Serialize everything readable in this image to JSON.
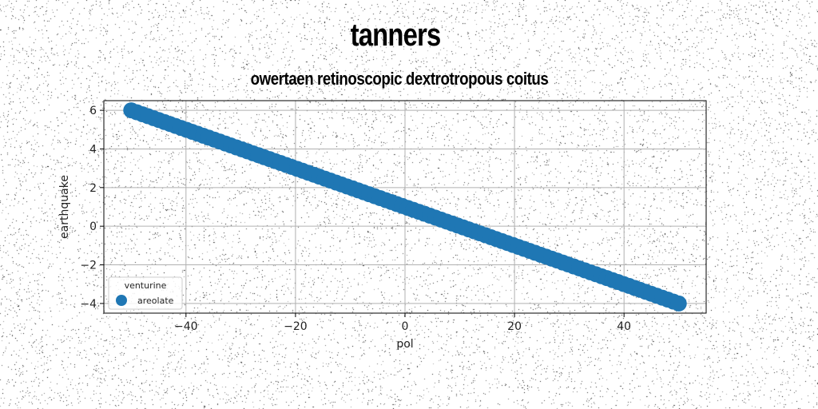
{
  "chart_data": {
    "type": "scatter",
    "title": "tanners",
    "subtitle": "owertaen retinoscopic dextrotropous coitus",
    "xlabel": "pol",
    "ylabel": "earthquake",
    "xlim": [
      -55,
      55
    ],
    "ylim": [
      -4.5,
      6.5
    ],
    "xticks": [
      -40,
      -20,
      0,
      20,
      40
    ],
    "yticks": [
      -4,
      -2,
      0,
      2,
      4,
      6
    ],
    "xtick_labels": [
      "−40",
      "−20",
      "0",
      "20",
      "40"
    ],
    "ytick_labels": [
      "−4",
      "−2",
      "0",
      "2",
      "4",
      "6"
    ],
    "grid": true,
    "legend": {
      "title": "venturine",
      "placement": "lower-left"
    },
    "series": [
      {
        "name": "areolate",
        "color": "#1f77b4",
        "x_start": -50,
        "x_end": 50,
        "y_start": 6,
        "y_end": -4,
        "num_points": 100
      }
    ]
  }
}
